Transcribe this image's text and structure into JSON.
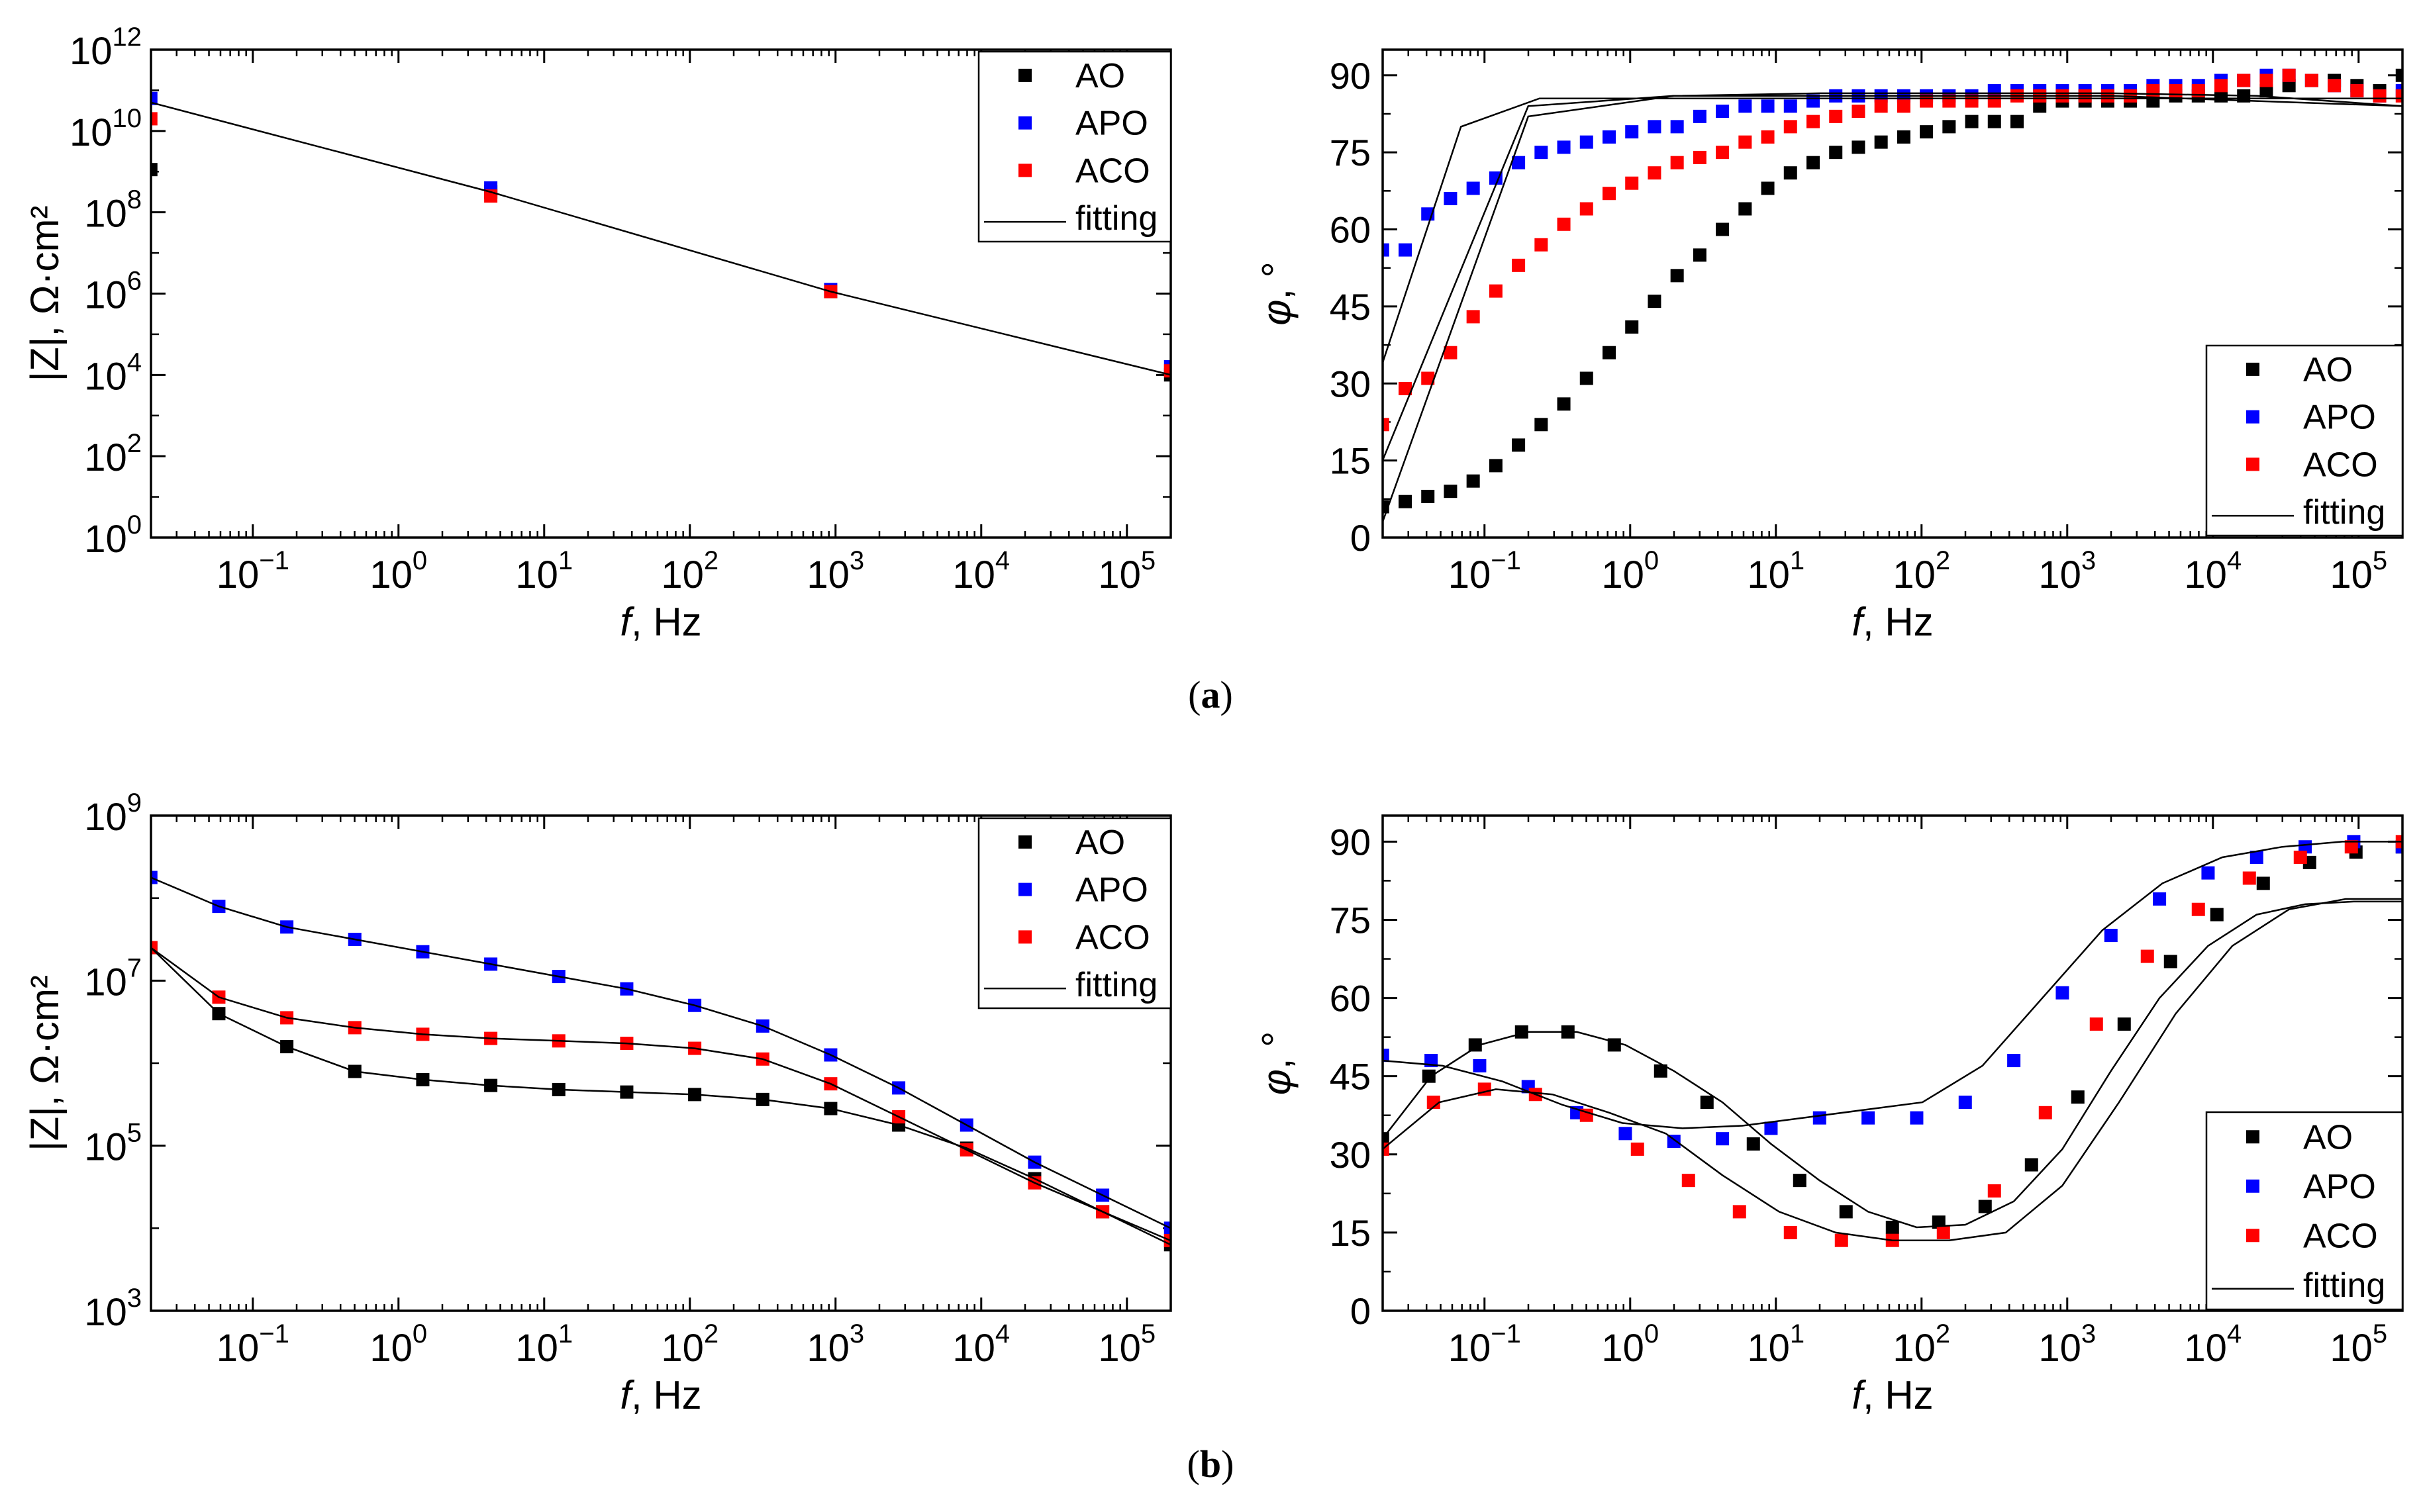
{
  "colors": {
    "AO": "#000000",
    "APO": "#0000ff",
    "ACO": "#ff0000",
    "fitting": "#000000"
  },
  "captions": {
    "a": "a",
    "b": "b"
  },
  "chart_data": [
    {
      "id": "a-modulus",
      "type": "scatter",
      "panel": "a",
      "xscale": "log",
      "yscale": "log",
      "xlim": [
        0.02,
        200000
      ],
      "ylim": [
        1,
        1000000000000
      ],
      "xlabel_italic": "f",
      "xlabel_rest": ", Hz",
      "ylabel": "|Z|, Ω·cm²",
      "xticks": [
        {
          "base": "10",
          "exp": "−1",
          "v": 0.1
        },
        {
          "base": "10",
          "exp": "0",
          "v": 1
        },
        {
          "base": "10",
          "exp": "1",
          "v": 10
        },
        {
          "base": "10",
          "exp": "2",
          "v": 100
        },
        {
          "base": "10",
          "exp": "3",
          "v": 1000
        },
        {
          "base": "10",
          "exp": "4",
          "v": 10000
        },
        {
          "base": "10",
          "exp": "5",
          "v": 100000
        }
      ],
      "yticks": [
        {
          "base": "10",
          "exp": "0",
          "v": 1
        },
        {
          "base": "10",
          "exp": "2",
          "v": 100
        },
        {
          "base": "10",
          "exp": "4",
          "v": 10000
        },
        {
          "base": "10",
          "exp": "6",
          "v": 1000000
        },
        {
          "base": "10",
          "exp": "8",
          "v": 100000000
        },
        {
          "base": "10",
          "exp": "10",
          "v": 10000000000
        },
        {
          "base": "10",
          "exp": "12",
          "v": 1000000000000
        }
      ],
      "legend_position": "top-right",
      "legend": [
        "AO",
        "APO",
        "ACO",
        "fitting"
      ],
      "series": [
        {
          "name": "AO",
          "kind": "points",
          "logx": [
            -1.7,
            3.1,
            5.3
          ],
          "logy": [
            9.05,
            8.5,
            6.05,
            4.0
          ]
        },
        {
          "name": "APO",
          "kind": "points",
          "logx": [
            -1.7,
            3.1,
            5.3
          ],
          "logy": [
            10.8,
            8.6,
            6.1,
            4.2
          ]
        },
        {
          "name": "ACO",
          "kind": "points",
          "logx": [
            -1.7,
            3.1,
            5.3
          ],
          "logy": [
            10.3,
            8.4,
            6.05,
            4.1
          ]
        },
        {
          "name": "fitting",
          "kind": "line",
          "logx": [
            -1.7,
            3.1,
            5.3
          ],
          "logy": [
            10.7,
            8.5,
            6.05,
            4.0
          ]
        }
      ]
    },
    {
      "id": "a-phase",
      "type": "scatter",
      "panel": "a",
      "xscale": "log",
      "yscale": "linear",
      "xlim": [
        0.02,
        200000
      ],
      "ylim": [
        0,
        95
      ],
      "xlabel_italic": "f",
      "xlabel_rest": ", Hz",
      "ylabel_italic": "φ",
      "ylabel_rest": ", °",
      "xticks": [
        {
          "base": "10",
          "exp": "−1",
          "v": 0.1
        },
        {
          "base": "10",
          "exp": "0",
          "v": 1
        },
        {
          "base": "10",
          "exp": "1",
          "v": 10
        },
        {
          "base": "10",
          "exp": "2",
          "v": 100
        },
        {
          "base": "10",
          "exp": "3",
          "v": 1000
        },
        {
          "base": "10",
          "exp": "4",
          "v": 10000
        },
        {
          "base": "10",
          "exp": "5",
          "v": 100000
        }
      ],
      "yticks": [
        {
          "label": "0",
          "v": 0
        },
        {
          "label": "15",
          "v": 15
        },
        {
          "label": "30",
          "v": 30
        },
        {
          "label": "45",
          "v": 45
        },
        {
          "label": "60",
          "v": 60
        },
        {
          "label": "75",
          "v": 75
        },
        {
          "label": "90",
          "v": 90
        }
      ],
      "legend_position": "bottom-right",
      "legend": [
        "AO",
        "APO",
        "ACO",
        "fitting"
      ],
      "series": [
        {
          "name": "AO",
          "kind": "points",
          "logx": [
            -1.7,
            3.1,
            5.3
          ],
          "y": [
            6,
            7,
            8,
            9,
            11,
            14,
            18,
            22,
            26,
            31,
            36,
            41,
            46,
            51,
            55,
            60,
            64,
            68,
            71,
            73,
            75,
            76,
            77,
            78,
            79,
            80,
            81,
            81,
            81,
            84,
            85,
            85,
            85,
            85,
            85,
            86,
            86,
            86,
            86,
            87,
            88,
            89,
            89,
            88,
            87,
            90
          ]
        },
        {
          "name": "APO",
          "kind": "points",
          "logx": [
            -1.7,
            3.1,
            5.3
          ],
          "y": [
            56,
            56,
            63,
            66,
            68,
            70,
            73,
            75,
            76,
            77,
            78,
            79,
            80,
            80,
            82,
            83,
            84,
            84,
            84,
            85,
            86,
            86,
            86,
            86,
            86,
            86,
            86,
            87,
            87,
            87,
            87,
            87,
            87,
            87,
            88,
            88,
            88,
            89,
            89,
            90,
            90,
            89,
            88,
            87,
            86,
            87
          ]
        },
        {
          "name": "ACO",
          "kind": "points",
          "logx": [
            -1.7,
            3.1,
            5.3
          ],
          "y": [
            22,
            29,
            31,
            36,
            43,
            48,
            53,
            57,
            61,
            64,
            67,
            69,
            71,
            73,
            74,
            75,
            77,
            78,
            80,
            81,
            82,
            83,
            84,
            84,
            85,
            85,
            85,
            85,
            86,
            86,
            86,
            86,
            86,
            86,
            87,
            87,
            87,
            88,
            89,
            89,
            90,
            89,
            88,
            87,
            86,
            86
          ]
        },
        {
          "name": "fitting",
          "kind": "line",
          "logx": [
            -1.7,
            3.1,
            5.3
          ],
          "y": [
            34,
            80,
            85.5,
            85.5,
            85.5,
            85.5,
            85.5,
            85.5,
            85.5,
            85.5,
            85.5,
            85.5,
            85.5,
            85.5
          ]
        },
        {
          "name": "fitting",
          "kind": "line",
          "logx": [
            -1.7,
            3.1,
            5.3
          ],
          "y": [
            15,
            84,
            86,
            86,
            86,
            86,
            85,
            84
          ]
        },
        {
          "name": "fitting",
          "kind": "line",
          "logx": [
            -1.7,
            3.1,
            5.3
          ],
          "y": [
            3,
            82,
            86,
            86.5,
            86.5,
            86.5,
            86,
            84
          ]
        }
      ]
    },
    {
      "id": "b-modulus",
      "type": "scatter",
      "panel": "b",
      "xscale": "log",
      "yscale": "log",
      "xlim": [
        0.02,
        200000
      ],
      "ylim": [
        1000,
        1000000000
      ],
      "xlabel_italic": "f",
      "xlabel_rest": ", Hz",
      "ylabel": "|Z|, Ω·cm²",
      "xticks": [
        {
          "base": "10",
          "exp": "−1",
          "v": 0.1
        },
        {
          "base": "10",
          "exp": "0",
          "v": 1
        },
        {
          "base": "10",
          "exp": "1",
          "v": 10
        },
        {
          "base": "10",
          "exp": "2",
          "v": 100
        },
        {
          "base": "10",
          "exp": "3",
          "v": 1000
        },
        {
          "base": "10",
          "exp": "4",
          "v": 10000
        },
        {
          "base": "10",
          "exp": "5",
          "v": 100000
        }
      ],
      "yticks": [
        {
          "base": "10",
          "exp": "3",
          "v": 1000
        },
        {
          "base": "10",
          "exp": "5",
          "v": 100000
        },
        {
          "base": "10",
          "exp": "7",
          "v": 10000000
        },
        {
          "base": "10",
          "exp": "9",
          "v": 1000000000
        }
      ],
      "legend_position": "top-right",
      "legend": [
        "AO",
        "APO",
        "ACO",
        "fitting"
      ],
      "series": [
        {
          "name": "AO",
          "kind": "points",
          "logx": [
            -1.7,
            3.1,
            5.3
          ],
          "logy": [
            7.4,
            6.6,
            6.2,
            5.9,
            5.8,
            5.73,
            5.68,
            5.65,
            5.62,
            5.56,
            5.45,
            5.25,
            4.97,
            4.6,
            4.2,
            3.8
          ]
        },
        {
          "name": "APO",
          "kind": "points",
          "logx": [
            -1.7,
            3.1,
            5.3
          ],
          "logy": [
            8.25,
            7.9,
            7.65,
            7.5,
            7.35,
            7.2,
            7.05,
            6.9,
            6.7,
            6.45,
            6.1,
            5.7,
            5.25,
            4.8,
            4.4,
            4.0
          ]
        },
        {
          "name": "ACO",
          "kind": "points",
          "logx": [
            -1.7,
            3.1,
            5.3
          ],
          "logy": [
            7.4,
            6.8,
            6.55,
            6.43,
            6.35,
            6.3,
            6.27,
            6.24,
            6.18,
            6.05,
            5.75,
            5.35,
            4.95,
            4.55,
            4.2,
            3.85
          ]
        },
        {
          "name": "fitting",
          "kind": "line",
          "logx": [
            -1.7,
            3.1,
            5.3
          ],
          "logy": [
            7.4,
            6.6,
            6.2,
            5.9,
            5.8,
            5.73,
            5.68,
            5.65,
            5.62,
            5.56,
            5.45,
            5.25,
            4.97,
            4.6,
            4.2,
            3.8
          ]
        },
        {
          "name": "fitting",
          "kind": "line",
          "logx": [
            -1.7,
            3.1,
            5.3
          ],
          "logy": [
            8.25,
            7.9,
            7.65,
            7.5,
            7.35,
            7.2,
            7.05,
            6.9,
            6.7,
            6.45,
            6.1,
            5.7,
            5.25,
            4.8,
            4.4,
            4.0
          ]
        },
        {
          "name": "fitting",
          "kind": "line",
          "logx": [
            -1.7,
            3.1,
            5.3
          ],
          "logy": [
            7.4,
            6.8,
            6.55,
            6.43,
            6.35,
            6.3,
            6.27,
            6.24,
            6.18,
            6.05,
            5.75,
            5.35,
            4.95,
            4.55,
            4.2,
            3.85
          ]
        }
      ]
    },
    {
      "id": "b-phase",
      "type": "scatter",
      "panel": "b",
      "xscale": "log",
      "yscale": "linear",
      "xlim": [
        0.02,
        200000
      ],
      "ylim": [
        0,
        95
      ],
      "xlabel_italic": "f",
      "xlabel_rest": ", Hz",
      "ylabel_italic": "φ",
      "ylabel_rest": ", °",
      "xticks": [
        {
          "base": "10",
          "exp": "−1",
          "v": 0.1
        },
        {
          "base": "10",
          "exp": "0",
          "v": 1
        },
        {
          "base": "10",
          "exp": "1",
          "v": 10
        },
        {
          "base": "10",
          "exp": "2",
          "v": 100
        },
        {
          "base": "10",
          "exp": "3",
          "v": 1000
        },
        {
          "base": "10",
          "exp": "4",
          "v": 10000
        },
        {
          "base": "10",
          "exp": "5",
          "v": 100000
        }
      ],
      "yticks": [
        {
          "label": "0",
          "v": 0
        },
        {
          "label": "15",
          "v": 15
        },
        {
          "label": "30",
          "v": 30
        },
        {
          "label": "45",
          "v": 45
        },
        {
          "label": "60",
          "v": 60
        },
        {
          "label": "75",
          "v": 75
        },
        {
          "label": "90",
          "v": 90
        }
      ],
      "legend_position": "bottom-right",
      "legend": [
        "AO",
        "APO",
        "ACO",
        "fitting"
      ],
      "series": [
        {
          "name": "AO",
          "kind": "points",
          "logx": [
            -1.7,
            3.1,
            5.3
          ],
          "y": [
            33,
            45,
            51,
            53.5,
            53.5,
            51,
            46,
            40,
            32,
            25,
            19,
            16,
            17,
            20,
            28,
            41,
            55,
            67,
            76,
            82,
            86,
            88,
            89
          ]
        },
        {
          "name": "APO",
          "kind": "points",
          "logx": [
            -1.7,
            3.1,
            5.3
          ],
          "y": [
            49,
            48,
            47,
            43,
            38,
            34,
            32.5,
            33,
            35,
            37,
            37,
            37,
            40,
            48,
            61,
            72,
            79,
            84,
            87,
            89,
            90,
            89
          ]
        },
        {
          "name": "ACO",
          "kind": "points",
          "logx": [
            -1.7,
            3.1,
            5.3
          ],
          "y": [
            31,
            40,
            42.5,
            41.5,
            37.5,
            31,
            25,
            19,
            15,
            13.5,
            13.5,
            15,
            23,
            38,
            55,
            68,
            77,
            83,
            87,
            89,
            90
          ]
        },
        {
          "name": "fitting",
          "kind": "line",
          "logx": [
            -1.7,
            3.1,
            5.3
          ],
          "y": [
            33,
            45,
            51,
            53.5,
            53.5,
            51,
            46,
            40,
            32,
            25,
            19,
            16,
            16.5,
            21,
            31,
            46,
            60,
            70,
            76,
            78,
            78.5,
            78.5
          ]
        },
        {
          "name": "fitting",
          "kind": "line",
          "logx": [
            -1.7,
            3.1,
            5.3
          ],
          "y": [
            48,
            47,
            44,
            39.5,
            36,
            35,
            35.5,
            37,
            38.5,
            40,
            47,
            60,
            73,
            82,
            87,
            89,
            90,
            90
          ]
        },
        {
          "name": "fitting",
          "kind": "line",
          "logx": [
            -1.7,
            3.1,
            5.3
          ],
          "y": [
            31,
            40,
            42.5,
            41.5,
            38,
            34,
            26,
            19,
            15,
            13.5,
            13.5,
            15,
            24,
            40,
            57,
            70,
            77,
            79,
            79
          ]
        }
      ]
    }
  ]
}
